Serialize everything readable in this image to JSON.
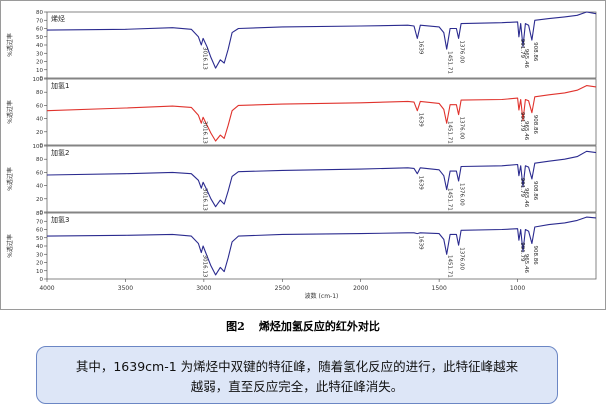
{
  "chart_data": {
    "type": "line",
    "x_axis": {
      "label": "波数 (cm-1)",
      "range": [
        4000,
        500
      ],
      "ticks": [
        4000,
        3500,
        3000,
        2500,
        2000,
        1500,
        1000
      ]
    },
    "y_axis_label": "%透过率",
    "panels": [
      {
        "name": "烯烃",
        "color": "#2b2b8f",
        "yrange": [
          0,
          80
        ],
        "yticks": [
          0,
          10,
          20,
          30,
          40,
          50,
          60,
          70,
          80
        ],
        "profile": [
          [
            4000,
            58
          ],
          [
            3500,
            59
          ],
          [
            3200,
            61
          ],
          [
            3080,
            59
          ],
          [
            3035,
            50
          ],
          [
            3016.13,
            40
          ],
          [
            3005,
            48
          ],
          [
            2980,
            38
          ],
          [
            2955,
            25
          ],
          [
            2925,
            12
          ],
          [
            2895,
            22
          ],
          [
            2870,
            18
          ],
          [
            2845,
            35
          ],
          [
            2820,
            55
          ],
          [
            2780,
            60
          ],
          [
            2500,
            62
          ],
          [
            2000,
            63
          ],
          [
            1700,
            64
          ],
          [
            1660,
            63
          ],
          [
            1639,
            48
          ],
          [
            1620,
            64
          ],
          [
            1500,
            62
          ],
          [
            1470,
            55
          ],
          [
            1451.71,
            35
          ],
          [
            1430,
            60
          ],
          [
            1390,
            60
          ],
          [
            1376,
            48
          ],
          [
            1360,
            66
          ],
          [
            1100,
            67
          ],
          [
            1000,
            68
          ],
          [
            991.79,
            50
          ],
          [
            980,
            66
          ],
          [
            965.46,
            38
          ],
          [
            950,
            66
          ],
          [
            930,
            64
          ],
          [
            908.86,
            46
          ],
          [
            890,
            70
          ],
          [
            800,
            72
          ],
          [
            700,
            74
          ],
          [
            620,
            76
          ],
          [
            560,
            80
          ],
          [
            500,
            78
          ]
        ],
        "peak_labels": [
          "3016.13",
          "1639",
          "1451.71",
          "1376.00",
          "991.79",
          "965.46",
          "908.86"
        ]
      },
      {
        "name": "加氢1",
        "color": "#e0332d",
        "yrange": [
          0,
          100
        ],
        "yticks": [
          0,
          20,
          40,
          60,
          80,
          100
        ],
        "profile": [
          [
            4000,
            52
          ],
          [
            3500,
            56
          ],
          [
            3200,
            59
          ],
          [
            3080,
            57
          ],
          [
            3035,
            45
          ],
          [
            3016.13,
            33
          ],
          [
            3005,
            42
          ],
          [
            2980,
            30
          ],
          [
            2955,
            18
          ],
          [
            2925,
            6
          ],
          [
            2895,
            15
          ],
          [
            2870,
            10
          ],
          [
            2845,
            30
          ],
          [
            2820,
            52
          ],
          [
            2780,
            60
          ],
          [
            2500,
            62
          ],
          [
            2000,
            64
          ],
          [
            1700,
            66
          ],
          [
            1660,
            65
          ],
          [
            1639,
            52
          ],
          [
            1620,
            66
          ],
          [
            1500,
            63
          ],
          [
            1470,
            54
          ],
          [
            1451.71,
            33
          ],
          [
            1430,
            61
          ],
          [
            1390,
            61
          ],
          [
            1376,
            46
          ],
          [
            1360,
            68
          ],
          [
            1100,
            69
          ],
          [
            1000,
            71
          ],
          [
            991.79,
            53
          ],
          [
            980,
            69
          ],
          [
            965.46,
            37
          ],
          [
            950,
            69
          ],
          [
            930,
            67
          ],
          [
            908.86,
            49
          ],
          [
            890,
            73
          ],
          [
            800,
            76
          ],
          [
            700,
            79
          ],
          [
            620,
            83
          ],
          [
            560,
            90
          ],
          [
            500,
            88
          ]
        ],
        "peak_labels": [
          "3016.13",
          "1639",
          "1451.71",
          "1376.00",
          "991.79",
          "965.46",
          "908.86"
        ]
      },
      {
        "name": "加氢2",
        "color": "#2b2b8f",
        "yrange": [
          0,
          100
        ],
        "yticks": [
          0,
          20,
          40,
          60,
          80,
          100
        ],
        "profile": [
          [
            4000,
            56
          ],
          [
            3500,
            58
          ],
          [
            3200,
            60
          ],
          [
            3080,
            58
          ],
          [
            3035,
            48
          ],
          [
            3016.13,
            36
          ],
          [
            3005,
            45
          ],
          [
            2980,
            33
          ],
          [
            2955,
            20
          ],
          [
            2925,
            8
          ],
          [
            2895,
            18
          ],
          [
            2870,
            12
          ],
          [
            2845,
            32
          ],
          [
            2820,
            54
          ],
          [
            2780,
            61
          ],
          [
            2500,
            63
          ],
          [
            2000,
            65
          ],
          [
            1700,
            67
          ],
          [
            1660,
            66
          ],
          [
            1639,
            58
          ],
          [
            1620,
            67
          ],
          [
            1500,
            64
          ],
          [
            1470,
            55
          ],
          [
            1451.71,
            34
          ],
          [
            1430,
            62
          ],
          [
            1390,
            62
          ],
          [
            1376,
            47
          ],
          [
            1360,
            69
          ],
          [
            1100,
            70
          ],
          [
            1000,
            72
          ],
          [
            991.79,
            55
          ],
          [
            980,
            70
          ],
          [
            965.46,
            38
          ],
          [
            950,
            70
          ],
          [
            930,
            68
          ],
          [
            908.86,
            50
          ],
          [
            890,
            74
          ],
          [
            800,
            77
          ],
          [
            700,
            80
          ],
          [
            620,
            84
          ],
          [
            560,
            92
          ],
          [
            500,
            90
          ]
        ],
        "peak_labels": [
          "3016.13",
          "1639",
          "1451.71",
          "1376.00",
          "991.79",
          "965.46",
          "908.86"
        ]
      },
      {
        "name": "加氢3",
        "color": "#2b2b8f",
        "yrange": [
          0,
          80
        ],
        "yticks": [
          0,
          10,
          20,
          30,
          40,
          50,
          60,
          70,
          80
        ],
        "profile": [
          [
            4000,
            52
          ],
          [
            3500,
            53
          ],
          [
            3200,
            54
          ],
          [
            3080,
            52
          ],
          [
            3035,
            43
          ],
          [
            3016.13,
            32
          ],
          [
            3005,
            40
          ],
          [
            2980,
            28
          ],
          [
            2955,
            16
          ],
          [
            2925,
            5
          ],
          [
            2895,
            14
          ],
          [
            2870,
            9
          ],
          [
            2845,
            26
          ],
          [
            2820,
            45
          ],
          [
            2780,
            52
          ],
          [
            2500,
            54
          ],
          [
            2000,
            55
          ],
          [
            1700,
            56
          ],
          [
            1660,
            56
          ],
          [
            1639,
            55
          ],
          [
            1620,
            56
          ],
          [
            1500,
            55
          ],
          [
            1470,
            48
          ],
          [
            1451.71,
            30
          ],
          [
            1430,
            54
          ],
          [
            1390,
            54
          ],
          [
            1376,
            41
          ],
          [
            1360,
            59
          ],
          [
            1100,
            60
          ],
          [
            1000,
            61
          ],
          [
            991.79,
            47
          ],
          [
            980,
            60
          ],
          [
            965.46,
            33
          ],
          [
            950,
            60
          ],
          [
            930,
            58
          ],
          [
            908.86,
            43
          ],
          [
            890,
            63
          ],
          [
            800,
            66
          ],
          [
            700,
            68
          ],
          [
            620,
            71
          ],
          [
            560,
            75
          ],
          [
            500,
            74
          ]
        ],
        "peak_labels": [
          "3016.13",
          "1639",
          "1451.71",
          "1376.00",
          "991.79",
          "965.46",
          "908.86"
        ]
      }
    ]
  },
  "caption": {
    "number": "图2",
    "title": "烯烃加氢反应的红外对比"
  },
  "note": {
    "line1": "其中，1639cm-1 为烯烃中双键的特征峰，随着氢化反应的进行，此特征峰越来",
    "line2": "越弱，直至反应完全，此特征峰消失。"
  }
}
